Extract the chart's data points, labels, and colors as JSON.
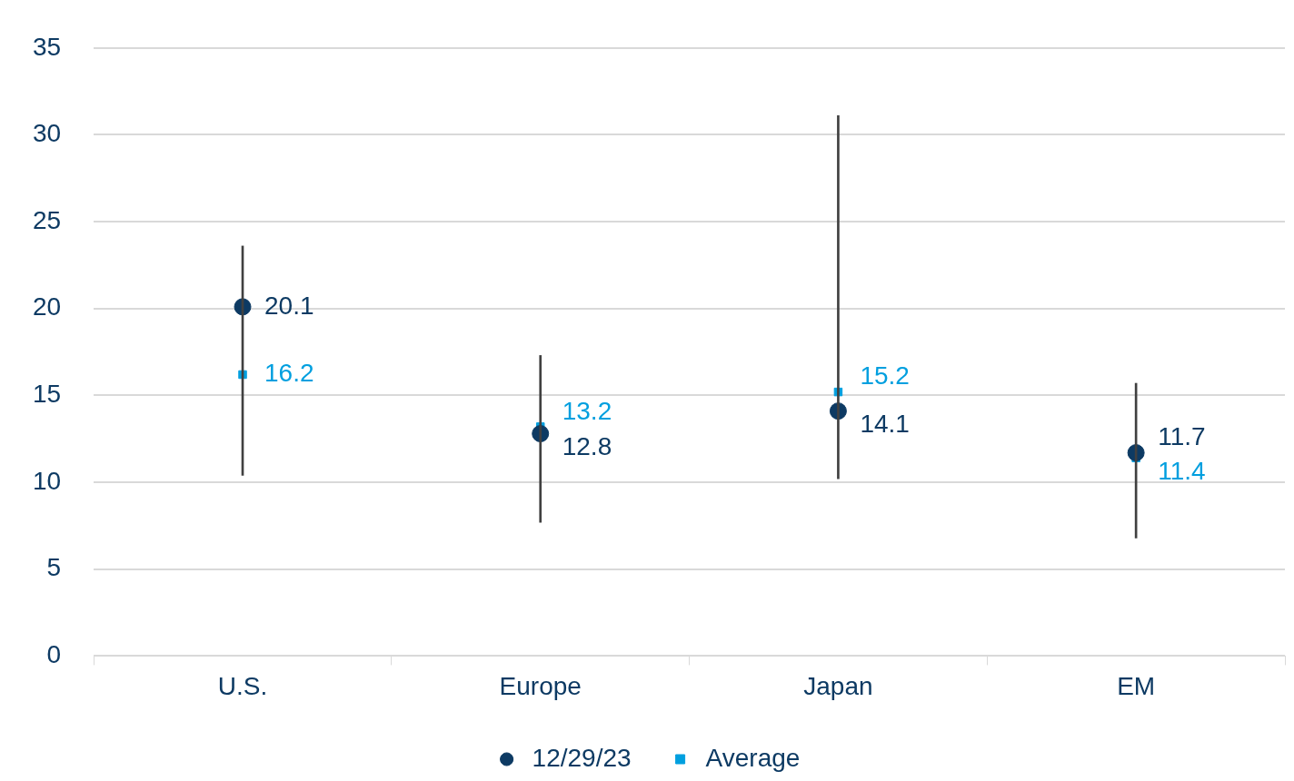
{
  "chart_data": {
    "type": "bar",
    "categories": [
      "U.S.",
      "Europe",
      "Japan",
      "EM"
    ],
    "ylim": [
      0,
      35
    ],
    "yticks": [
      0,
      5,
      10,
      15,
      20,
      25,
      30,
      35
    ],
    "grid": "y",
    "legend": "bottom",
    "series": [
      {
        "color": "#404040",
        "base": [
          10.4,
          7.7,
          10.2,
          6.8
        ],
        "values": [
          13.2,
          9.6,
          20.9,
          8.9
        ]
      },
      {
        "type": "scatter",
        "name": "12/29/23",
        "color": "#0d3a63",
        "marker": "circle",
        "values": [
          20.1,
          12.8,
          14.1,
          11.7
        ],
        "value_labels": [
          "20.1",
          "12.8",
          "14.1",
          "11.7"
        ]
      },
      {
        "type": "scatter",
        "name": "Average",
        "color": "#009fdf",
        "marker": "square",
        "values": [
          16.2,
          13.2,
          15.2,
          11.4
        ],
        "value_labels": [
          "16.2",
          "13.2",
          "15.2",
          "11.4"
        ]
      }
    ]
  }
}
